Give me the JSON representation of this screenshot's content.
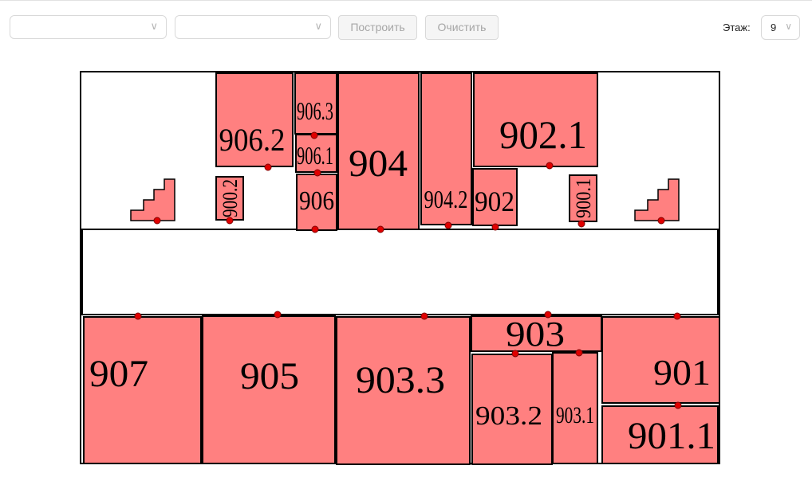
{
  "toolbar": {
    "select1_value": "",
    "select2_value": "",
    "build_label": "Построить",
    "clear_label": "Очистить",
    "chevron": "∨",
    "floor_label": "Этаж:",
    "floor_value": "9"
  },
  "colors": {
    "room_fill": "#ff8080",
    "room_stroke": "#000000",
    "door_marker": "#e00000",
    "button_bg": "#f5f5f5",
    "button_text": "#a6a6a6"
  },
  "plan": {
    "rooms": {
      "r906_2": "906.2",
      "r906_3": "906.3",
      "r906_1": "906.1",
      "r906": "906",
      "r904": "904",
      "r904_2": "904.2",
      "r902_1": "902.1",
      "r902": "902",
      "r900_2": "900.2",
      "r900_1": "900.1",
      "r907": "907",
      "r905": "905",
      "r903_3": "903.3",
      "r903": "903",
      "r903_2": "903.2",
      "r903_1": "903.1",
      "r901": "901",
      "r901_1": "901.1"
    },
    "icons": [
      "stairs-icon",
      "stairs-icon"
    ]
  }
}
